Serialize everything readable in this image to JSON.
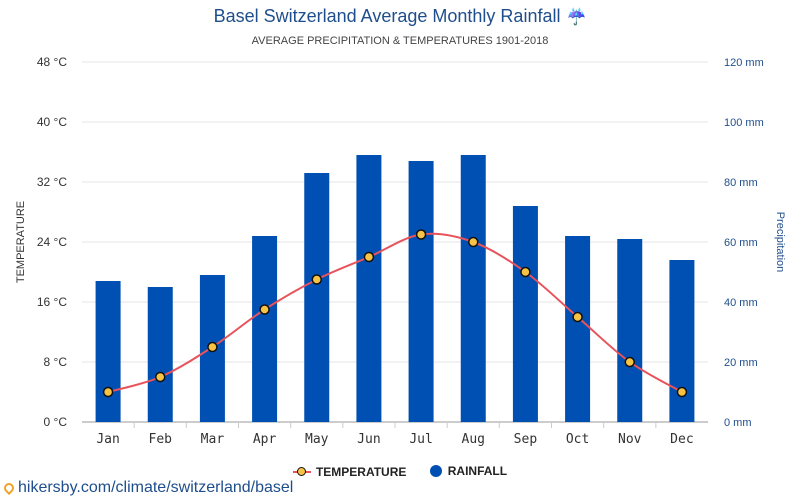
{
  "title": "Basel Switzerland Average Monthly Rainfall",
  "title_icon": "umbrella-rain-icon",
  "subtitle": "AVERAGE PRECIPITATION & TEMPERATURES 1901-2018",
  "source_url": "hikersby.com/climate/switzerland/basel",
  "colors": {
    "bar": "#0050b3",
    "line": "#e8535b",
    "marker": "#f6c344",
    "title": "#1f4e8c",
    "right_axis": "#1f4e8c",
    "grid": "#e6e6e6"
  },
  "legend": {
    "placement": "bottom-center",
    "temperature_label": "TEMPERATURE",
    "rainfall_label": "RAINFALL"
  },
  "chart_data": {
    "type": "bar",
    "categories": [
      "Jan",
      "Feb",
      "Mar",
      "Apr",
      "May",
      "Jun",
      "Jul",
      "Aug",
      "Sep",
      "Oct",
      "Nov",
      "Dec"
    ],
    "left_axis": {
      "label": "TEMPERATURE",
      "range": [
        0,
        48
      ],
      "ticks": [
        0,
        8,
        16,
        24,
        32,
        40,
        48
      ],
      "tick_labels": [
        "0 °C",
        "8 °C",
        "16 °C",
        "24 °C",
        "32 °C",
        "40 °C",
        "48 °C"
      ]
    },
    "right_axis": {
      "label": "Precipitation",
      "range": [
        0,
        120
      ],
      "ticks": [
        0,
        20,
        40,
        60,
        80,
        100,
        120
      ],
      "tick_labels": [
        "0 mm",
        "20 mm",
        "40 mm",
        "60 mm",
        "80 mm",
        "100 mm",
        "120 mm"
      ]
    },
    "grid": true,
    "series": [
      {
        "name": "RAINFALL",
        "type": "bar",
        "axis": "right",
        "values": [
          47,
          45,
          49,
          62,
          83,
          89,
          87,
          89,
          72,
          62,
          61,
          54
        ]
      },
      {
        "name": "TEMPERATURE",
        "type": "line",
        "axis": "left",
        "values": [
          4,
          6,
          10,
          15,
          19,
          22,
          25,
          24,
          20,
          14,
          8,
          4
        ]
      }
    ]
  }
}
